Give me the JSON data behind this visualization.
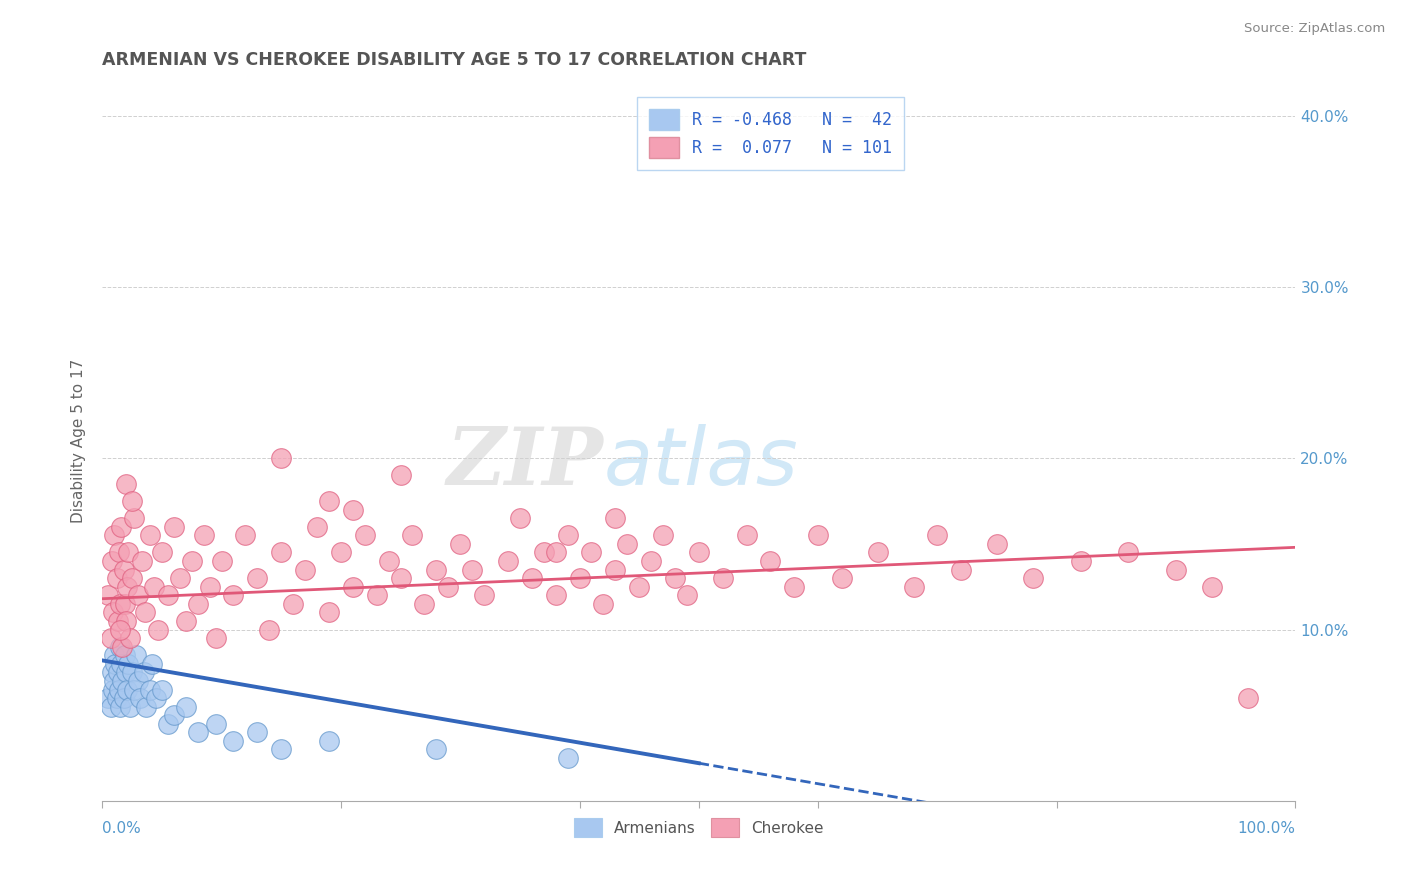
{
  "title": "ARMENIAN VS CHEROKEE DISABILITY AGE 5 TO 17 CORRELATION CHART",
  "source": "Source: ZipAtlas.com",
  "ylabel": "Disability Age 5 to 17",
  "xlim": [
    0,
    1.0
  ],
  "ylim": [
    0,
    0.42
  ],
  "x_edge_labels": [
    "0.0%",
    "100.0%"
  ],
  "ytick_positions": [
    0.1,
    0.2,
    0.3,
    0.4
  ],
  "ytick_labels": [
    "10.0%",
    "20.0%",
    "30.0%",
    "40.0%"
  ],
  "x_minor_ticks": [
    0.0,
    0.2,
    0.4,
    0.5,
    0.6,
    0.8,
    1.0
  ],
  "armenian_color": "#a8c8f0",
  "armenian_edge_color": "#6699cc",
  "cherokee_color": "#f4a0b4",
  "cherokee_edge_color": "#e06080",
  "armenian_line_color": "#3366bb",
  "cherokee_line_color": "#e05878",
  "legend_R_armenian": "-0.468",
  "legend_N_armenian": "42",
  "legend_R_cherokee": "0.077",
  "legend_N_cherokee": "101",
  "arm_line_x0": 0.0,
  "arm_line_y0": 0.082,
  "arm_line_x1": 0.5,
  "arm_line_y1": 0.022,
  "arm_line_dash_x0": 0.5,
  "arm_line_dash_y0": 0.022,
  "arm_line_dash_x1": 0.75,
  "arm_line_dash_y1": -0.008,
  "cher_line_x0": 0.0,
  "cher_line_y0": 0.118,
  "cher_line_x1": 1.0,
  "cher_line_y1": 0.148,
  "armenian_x": [
    0.005,
    0.007,
    0.008,
    0.009,
    0.01,
    0.01,
    0.011,
    0.012,
    0.013,
    0.014,
    0.015,
    0.015,
    0.016,
    0.017,
    0.018,
    0.019,
    0.02,
    0.021,
    0.022,
    0.023,
    0.025,
    0.027,
    0.028,
    0.03,
    0.032,
    0.035,
    0.037,
    0.04,
    0.042,
    0.045,
    0.05,
    0.055,
    0.06,
    0.07,
    0.08,
    0.095,
    0.11,
    0.13,
    0.15,
    0.19,
    0.28,
    0.39
  ],
  "armenian_y": [
    0.06,
    0.055,
    0.075,
    0.065,
    0.085,
    0.07,
    0.08,
    0.06,
    0.075,
    0.065,
    0.09,
    0.055,
    0.08,
    0.07,
    0.06,
    0.085,
    0.075,
    0.065,
    0.08,
    0.055,
    0.075,
    0.065,
    0.085,
    0.07,
    0.06,
    0.075,
    0.055,
    0.065,
    0.08,
    0.06,
    0.065,
    0.045,
    0.05,
    0.055,
    0.04,
    0.045,
    0.035,
    0.04,
    0.03,
    0.035,
    0.03,
    0.025
  ],
  "cherokee_x": [
    0.005,
    0.007,
    0.008,
    0.009,
    0.01,
    0.012,
    0.013,
    0.014,
    0.015,
    0.016,
    0.017,
    0.018,
    0.019,
    0.02,
    0.021,
    0.022,
    0.023,
    0.025,
    0.027,
    0.03,
    0.033,
    0.036,
    0.04,
    0.043,
    0.047,
    0.05,
    0.055,
    0.06,
    0.065,
    0.07,
    0.075,
    0.08,
    0.085,
    0.09,
    0.095,
    0.1,
    0.11,
    0.12,
    0.13,
    0.14,
    0.15,
    0.16,
    0.17,
    0.18,
    0.19,
    0.2,
    0.21,
    0.22,
    0.23,
    0.24,
    0.25,
    0.26,
    0.27,
    0.28,
    0.29,
    0.3,
    0.31,
    0.32,
    0.34,
    0.35,
    0.36,
    0.37,
    0.38,
    0.39,
    0.4,
    0.41,
    0.42,
    0.43,
    0.44,
    0.45,
    0.46,
    0.47,
    0.48,
    0.49,
    0.5,
    0.52,
    0.54,
    0.56,
    0.58,
    0.6,
    0.62,
    0.65,
    0.68,
    0.7,
    0.72,
    0.75,
    0.78,
    0.82,
    0.86,
    0.9,
    0.93,
    0.02,
    0.025,
    0.015,
    0.21,
    0.25,
    0.38,
    0.43,
    0.15,
    0.19,
    0.96
  ],
  "cherokee_y": [
    0.12,
    0.095,
    0.14,
    0.11,
    0.155,
    0.13,
    0.105,
    0.145,
    0.115,
    0.16,
    0.09,
    0.135,
    0.115,
    0.105,
    0.125,
    0.145,
    0.095,
    0.13,
    0.165,
    0.12,
    0.14,
    0.11,
    0.155,
    0.125,
    0.1,
    0.145,
    0.12,
    0.16,
    0.13,
    0.105,
    0.14,
    0.115,
    0.155,
    0.125,
    0.095,
    0.14,
    0.12,
    0.155,
    0.13,
    0.1,
    0.145,
    0.115,
    0.135,
    0.16,
    0.11,
    0.145,
    0.125,
    0.155,
    0.12,
    0.14,
    0.13,
    0.155,
    0.115,
    0.135,
    0.125,
    0.15,
    0.135,
    0.12,
    0.14,
    0.165,
    0.13,
    0.145,
    0.12,
    0.155,
    0.13,
    0.145,
    0.115,
    0.135,
    0.15,
    0.125,
    0.14,
    0.155,
    0.13,
    0.12,
    0.145,
    0.13,
    0.155,
    0.14,
    0.125,
    0.155,
    0.13,
    0.145,
    0.125,
    0.155,
    0.135,
    0.15,
    0.13,
    0.14,
    0.145,
    0.135,
    0.125,
    0.185,
    0.175,
    0.1,
    0.17,
    0.19,
    0.145,
    0.165,
    0.2,
    0.175,
    0.06
  ],
  "watermark_zip": "ZIP",
  "watermark_atlas": "atlas",
  "bg_color": "#ffffff",
  "grid_color": "#d0d0d0",
  "tick_color": "#5599cc",
  "title_color": "#555555",
  "ylabel_color": "#666666",
  "legend_text_color": "#3366cc",
  "legend_border_color": "#aaccee"
}
